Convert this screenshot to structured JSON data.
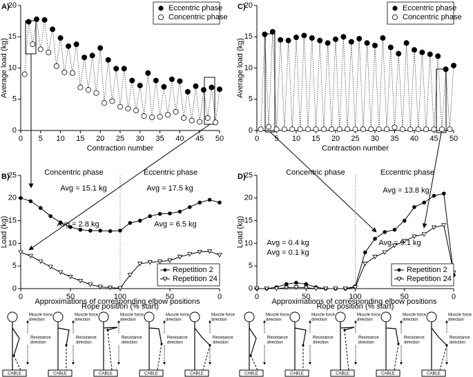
{
  "chart_data": [
    {
      "type": "scatter",
      "panel": "A)",
      "ylabel": "Average load (kg)",
      "xlabel": "Contraction number",
      "xlim": [
        0,
        50
      ],
      "xticks": [
        0,
        5,
        10,
        15,
        20,
        25,
        30,
        35,
        40,
        45,
        50
      ],
      "ylim": [
        0,
        20
      ],
      "yticks": [
        0,
        5,
        10,
        15,
        20
      ],
      "legend": "upper right",
      "series": [
        {
          "name": "Eccentric phase",
          "color": "#000000",
          "marker": "filled",
          "x": [
            2,
            4,
            6,
            8,
            10,
            12,
            14,
            16,
            18,
            20,
            22,
            24,
            26,
            28,
            30,
            32,
            34,
            36,
            38,
            40,
            42,
            44,
            46,
            48,
            50
          ],
          "values": [
            17.4,
            17.8,
            17.7,
            16.2,
            14.8,
            13.5,
            13.8,
            11.7,
            12.0,
            13.2,
            11.3,
            9.9,
            9.9,
            8.0,
            7.2,
            9.2,
            8.0,
            7.0,
            8.2,
            7.9,
            6.2,
            7.1,
            6.5,
            6.9,
            6.6
          ]
        },
        {
          "name": "Concentric phase",
          "color": "#000000",
          "marker": "open",
          "x": [
            1,
            3,
            5,
            7,
            9,
            11,
            13,
            15,
            17,
            19,
            21,
            23,
            25,
            27,
            29,
            31,
            33,
            35,
            37,
            39,
            41,
            43,
            45,
            47,
            49
          ],
          "values": [
            9.0,
            13.8,
            13.0,
            12.5,
            10.3,
            9.3,
            9.2,
            6.9,
            6.5,
            6.0,
            4.4,
            4.7,
            3.8,
            3.5,
            3.2,
            2.3,
            2.1,
            2.2,
            2.5,
            3.0,
            2.0,
            1.6,
            1.4,
            2.0,
            1.3
          ]
        }
      ]
    },
    {
      "type": "line",
      "panel": "B)",
      "ylabel": "Load (kg)",
      "xlabel": "Rope position (% start)",
      "xlim": [
        0,
        200
      ],
      "xticks": [
        0,
        50,
        100,
        {
          "value": 150,
          "label": "50"
        },
        {
          "value": 200,
          "label": "0"
        }
      ],
      "ylim": [
        0,
        25
      ],
      "yticks": [
        0,
        5,
        10,
        15,
        20,
        25
      ],
      "legend": "lower right",
      "annotations": [
        "Concentric phase",
        "Eccentric phase",
        "Avg = 15.1 kg",
        "Avg = 17.5 kg",
        "Avg = 2.8 kg",
        "Avg = 6.5 kg"
      ],
      "x": [
        0,
        10,
        20,
        30,
        40,
        50,
        60,
        70,
        80,
        90,
        100,
        110,
        120,
        130,
        140,
        150,
        160,
        170,
        180,
        190,
        200
      ],
      "series": [
        {
          "name": "Repetition 2",
          "color": "#000000",
          "marker": "circle",
          "values": [
            20.0,
            19.3,
            17.8,
            16.0,
            14.6,
            13.6,
            13.0,
            12.8,
            12.8,
            12.7,
            12.8,
            14.5,
            15.0,
            16.0,
            16.5,
            16.6,
            17.0,
            18.0,
            19.0,
            19.6,
            19.0
          ]
        },
        {
          "name": "Repetition 24",
          "color": "#000000",
          "marker": "triangle",
          "values": [
            8.0,
            7.2,
            6.0,
            4.8,
            3.6,
            2.6,
            1.7,
            0.9,
            0.4,
            0.2,
            0.1,
            3.0,
            5.5,
            5.8,
            6.0,
            6.2,
            7.0,
            7.6,
            8.1,
            8.2,
            7.4
          ]
        }
      ]
    },
    {
      "type": "scatter",
      "panel": "C)",
      "ylabel": "Average load (kg)",
      "xlabel": "Contraction number",
      "xlim": [
        0,
        50
      ],
      "xticks": [
        0,
        5,
        10,
        15,
        20,
        25,
        30,
        35,
        40,
        45,
        50
      ],
      "ylim": [
        0,
        20
      ],
      "yticks": [
        0,
        5,
        10,
        15,
        20
      ],
      "legend": "upper right",
      "series": [
        {
          "name": "Eccentric phase",
          "color": "#000000",
          "marker": "filled",
          "x": [
            2,
            4,
            6,
            8,
            10,
            12,
            14,
            16,
            18,
            20,
            22,
            24,
            26,
            28,
            30,
            32,
            34,
            36,
            38,
            40,
            42,
            44,
            46,
            48,
            50
          ],
          "values": [
            15.4,
            15.8,
            14.5,
            14.4,
            14.9,
            15.2,
            14.8,
            14.4,
            14.0,
            14.6,
            15.0,
            14.2,
            14.7,
            14.0,
            13.6,
            14.8,
            13.3,
            12.3,
            14.0,
            12.9,
            12.5,
            12.2,
            11.9,
            9.8,
            10.4
          ]
        },
        {
          "name": "Concentric phase",
          "color": "#000000",
          "marker": "open",
          "x": [
            1,
            3,
            5,
            7,
            9,
            11,
            13,
            15,
            17,
            19,
            21,
            23,
            25,
            27,
            29,
            31,
            33,
            35,
            37,
            39,
            41,
            43,
            45,
            47,
            49
          ],
          "values": [
            0.2,
            0.6,
            0.2,
            0.2,
            0.2,
            0.2,
            0.2,
            0.2,
            0.2,
            0.2,
            0.2,
            0.2,
            0.2,
            0.2,
            0.2,
            0.2,
            0.2,
            0.5,
            0.2,
            0.2,
            0.2,
            0.2,
            0.2,
            0.2,
            0.2
          ]
        }
      ]
    },
    {
      "type": "line",
      "panel": "D)",
      "ylabel": "Load (kg)",
      "xlabel": "Rope position (% start)",
      "xlim": [
        0,
        200
      ],
      "xticks": [
        0,
        50,
        100,
        {
          "value": 150,
          "label": "50"
        },
        {
          "value": 200,
          "label": "0"
        }
      ],
      "ylim": [
        0,
        25
      ],
      "yticks": [
        0,
        5,
        10,
        15,
        20,
        25
      ],
      "legend": "lower right",
      "annotations": [
        "Concentric phase",
        "Eccentric phase",
        "Avg = 13.8 kg",
        "Avg = 0.4 kg",
        "Avg = 0.1 kg",
        "Avg = 9.1 kg"
      ],
      "x": [
        0,
        10,
        20,
        30,
        40,
        50,
        60,
        70,
        80,
        90,
        100,
        110,
        120,
        130,
        140,
        150,
        160,
        170,
        180,
        190,
        200
      ],
      "series": [
        {
          "name": "Repetition 2",
          "color": "#000000",
          "marker": "circle",
          "values": [
            0,
            0,
            0.3,
            1.0,
            1.3,
            1.0,
            0.3,
            0,
            0,
            0,
            0.5,
            8.0,
            11.0,
            12.5,
            13.0,
            15.0,
            18.0,
            19.0,
            20.5,
            21.0,
            3.0
          ]
        },
        {
          "name": "Repetition 24",
          "color": "#000000",
          "marker": "triangle",
          "values": [
            0,
            0,
            0,
            0.2,
            0.3,
            0.2,
            0,
            0,
            0,
            0,
            0.3,
            5.5,
            7.0,
            8.0,
            9.5,
            10.5,
            11.5,
            12.0,
            13.5,
            14.0,
            3.5
          ]
        }
      ]
    }
  ],
  "elbow_panels": [
    {
      "title": "Approximations of corresponding elbow positions",
      "figures": [
        {
          "muscle": [
            "Muscle force",
            "direction"
          ],
          "resistance": [
            "Resistance",
            "direction"
          ],
          "cable": "CABLE"
        },
        {
          "muscle": [
            "Muscle force",
            "direction"
          ],
          "resistance": [
            "Resistance",
            "direction"
          ],
          "cable": "CABLE"
        },
        {
          "muscle": [
            "Muscle force",
            "direction"
          ],
          "resistance": [
            "Resistance",
            "direction"
          ],
          "cable": "CABLE"
        },
        {
          "muscle": [
            "Muscle force",
            "direction"
          ],
          "resistance": [
            "Resistance",
            "direction"
          ],
          "cable": "CABLE"
        },
        {
          "muscle": [
            "Muscle force",
            "direction"
          ],
          "resistance": [
            "Resistance",
            "direction"
          ],
          "cable": "CABLE"
        }
      ]
    },
    {
      "title": "Approximations of corresponding elbow positions",
      "figures": [
        {
          "muscle": [
            "Muscle force",
            "direction"
          ],
          "resistance": [
            "Resistance",
            "direction"
          ],
          "cable": "CABLE"
        },
        {
          "muscle": [
            "Muscle force",
            "direction"
          ],
          "resistance": [
            "Resistance",
            "direction"
          ],
          "cable": "CABLE"
        },
        {
          "muscle": [
            "Muscle force",
            "direction"
          ],
          "resistance": [
            "Resistance",
            "direction"
          ],
          "cable": "CABLE"
        },
        {
          "muscle": [
            "Muscle force",
            "direction"
          ],
          "resistance": [
            "Resistance",
            "direction"
          ],
          "cable": "CABLE"
        },
        {
          "muscle": [
            "Muscle force",
            "direction"
          ],
          "resistance": [
            "Resistance",
            "direction"
          ],
          "cable": "CABLE"
        }
      ]
    }
  ]
}
